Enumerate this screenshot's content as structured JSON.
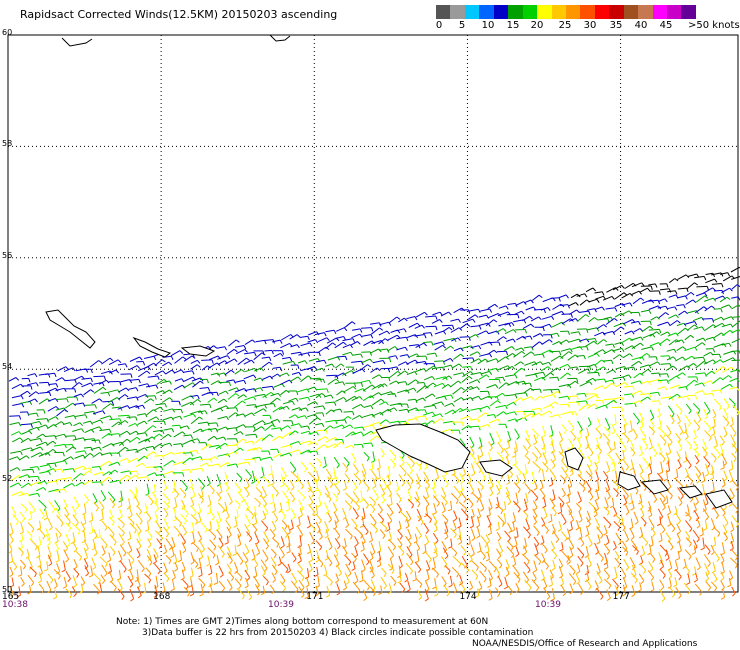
{
  "title": "Rapidsact Corrected Winds(12.5KM) 20150203 ascending",
  "legend": {
    "colors": [
      "#555555",
      "#9a9a9a",
      "#00c8ff",
      "#0064ff",
      "#0000c8",
      "#00a000",
      "#00d000",
      "#ffff00",
      "#ffc800",
      "#ff9600",
      "#ff5000",
      "#ff0000",
      "#c80000",
      "#a05020",
      "#c87850",
      "#ff00ff",
      "#c800c8",
      "#640096"
    ],
    "labels": [
      "0",
      "5",
      "10",
      "15",
      "20",
      "25",
      "30",
      "35",
      "40",
      "45",
      ">50 knots"
    ]
  },
  "map": {
    "lat_labels": [
      "60",
      "58",
      "56",
      "54",
      "52",
      "50"
    ],
    "lon_labels": [
      "165",
      "168",
      "171",
      "174",
      "177"
    ],
    "time_labels": [
      "10:38",
      "10:39",
      "10:39"
    ]
  },
  "notes": {
    "line1": "Note: 1) Times are GMT 2)Times along bottom correspond to measurement at 60N",
    "line2": "3)Data buffer is 22 hrs from 20150203 4) Black circles indicate possible contamination",
    "line3": "NOAA/NESDIS/Office of Research and Applications"
  },
  "chart_data": {
    "type": "map",
    "title": "Rapidsact Corrected Winds(12.5KM) 20150203 ascending",
    "lat_range": [
      50,
      60
    ],
    "lon_range": [
      165,
      179.3
    ],
    "speed_bands_knots": [
      0,
      5,
      10,
      15,
      20,
      25,
      30,
      35,
      40,
      45,
      50
    ],
    "speed_band_labels": [
      "0",
      "5",
      "10",
      "15",
      "20",
      "25",
      "30",
      "35",
      "40",
      "45",
      ">50 knots"
    ]
  }
}
